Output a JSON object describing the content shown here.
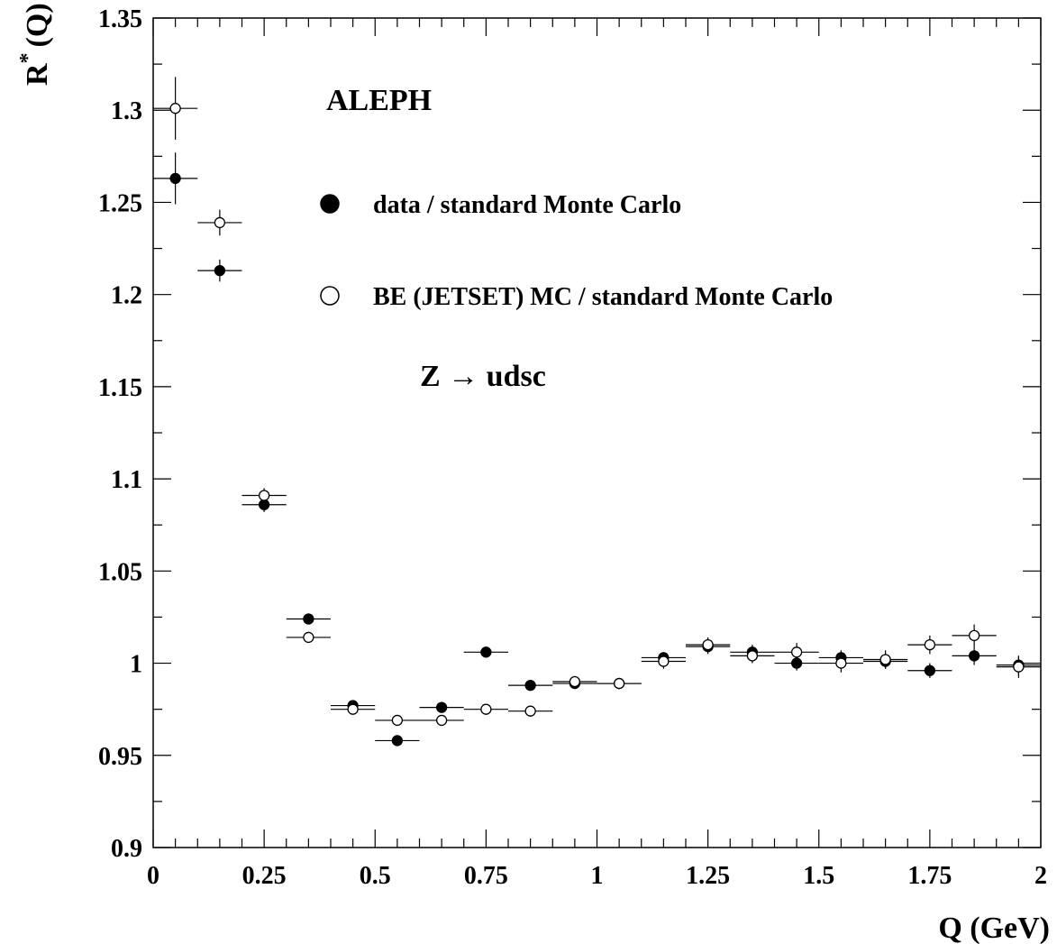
{
  "chart_data": {
    "type": "scatter",
    "title": "",
    "experiment_label": "ALEPH",
    "process_label": "Z → udsc",
    "xlabel": "Q (GeV)",
    "ylabel_main": "R",
    "ylabel_sup": "*",
    "ylabel_tail": "(Q)",
    "xlim": [
      0,
      2
    ],
    "ylim": [
      0.9,
      1.35
    ],
    "x_ticks": [
      {
        "value": 0,
        "label": "0"
      },
      {
        "value": 0.25,
        "label": "0.25"
      },
      {
        "value": 0.5,
        "label": "0.5"
      },
      {
        "value": 0.75,
        "label": "0.75"
      },
      {
        "value": 1,
        "label": "1"
      },
      {
        "value": 1.25,
        "label": "1.25"
      },
      {
        "value": 1.5,
        "label": "1.5"
      },
      {
        "value": 1.75,
        "label": "1.75"
      },
      {
        "value": 2,
        "label": "2"
      }
    ],
    "y_ticks": [
      {
        "value": 0.9,
        "label": "0.9"
      },
      {
        "value": 0.95,
        "label": "0.95"
      },
      {
        "value": 1,
        "label": "1"
      },
      {
        "value": 1.05,
        "label": "1.05"
      },
      {
        "value": 1.1,
        "label": "1.1"
      },
      {
        "value": 1.15,
        "label": "1.15"
      },
      {
        "value": 1.2,
        "label": "1.2"
      },
      {
        "value": 1.25,
        "label": "1.25"
      },
      {
        "value": 1.3,
        "label": "1.3"
      },
      {
        "value": 1.35,
        "label": "1.35"
      }
    ],
    "legend_placement": "top-center",
    "series": [
      {
        "name": "data / standard Monte Carlo",
        "marker": "filled-circle",
        "color": "#000000",
        "points": [
          {
            "x": 0.05,
            "y": 1.263,
            "xerr": 0.05,
            "yerr": 0.014
          },
          {
            "x": 0.15,
            "y": 1.213,
            "xerr": 0.05,
            "yerr": 0.006
          },
          {
            "x": 0.25,
            "y": 1.086,
            "xerr": 0.05,
            "yerr": 0.004
          },
          {
            "x": 0.35,
            "y": 1.024,
            "xerr": 0.05,
            "yerr": 0.003
          },
          {
            "x": 0.45,
            "y": 0.977,
            "xerr": 0.05,
            "yerr": 0.002
          },
          {
            "x": 0.55,
            "y": 0.958,
            "xerr": 0.05,
            "yerr": 0.002
          },
          {
            "x": 0.65,
            "y": 0.976,
            "xerr": 0.05,
            "yerr": 0.002
          },
          {
            "x": 0.75,
            "y": 1.006,
            "xerr": 0.05,
            "yerr": 0.002
          },
          {
            "x": 0.85,
            "y": 0.988,
            "xerr": 0.05,
            "yerr": 0.002
          },
          {
            "x": 0.95,
            "y": 0.989,
            "xerr": 0.05,
            "yerr": 0.003
          },
          {
            "x": 1.05,
            "y": 0.989,
            "xerr": 0.05,
            "yerr": 0.003
          },
          {
            "x": 1.15,
            "y": 1.003,
            "xerr": 0.05,
            "yerr": 0.003
          },
          {
            "x": 1.25,
            "y": 1.009,
            "xerr": 0.05,
            "yerr": 0.004
          },
          {
            "x": 1.35,
            "y": 1.006,
            "xerr": 0.05,
            "yerr": 0.004
          },
          {
            "x": 1.45,
            "y": 1.0,
            "xerr": 0.05,
            "yerr": 0.004
          },
          {
            "x": 1.55,
            "y": 1.003,
            "xerr": 0.05,
            "yerr": 0.004
          },
          {
            "x": 1.65,
            "y": 1.001,
            "xerr": 0.05,
            "yerr": 0.004
          },
          {
            "x": 1.75,
            "y": 0.996,
            "xerr": 0.05,
            "yerr": 0.004
          },
          {
            "x": 1.85,
            "y": 1.004,
            "xerr": 0.05,
            "yerr": 0.005
          },
          {
            "x": 1.95,
            "y": 0.999,
            "xerr": 0.05,
            "yerr": 0.005
          }
        ]
      },
      {
        "name": "BE (JETSET) MC / standard Monte Carlo",
        "marker": "open-circle",
        "color": "#000000",
        "points": [
          {
            "x": 0.05,
            "y": 1.301,
            "xerr": 0.05,
            "yerr": 0.017
          },
          {
            "x": 0.15,
            "y": 1.239,
            "xerr": 0.05,
            "yerr": 0.007
          },
          {
            "x": 0.25,
            "y": 1.091,
            "xerr": 0.05,
            "yerr": 0.004
          },
          {
            "x": 0.35,
            "y": 1.014,
            "xerr": 0.05,
            "yerr": 0.003
          },
          {
            "x": 0.45,
            "y": 0.975,
            "xerr": 0.05,
            "yerr": 0.002
          },
          {
            "x": 0.55,
            "y": 0.969,
            "xerr": 0.05,
            "yerr": 0.002
          },
          {
            "x": 0.65,
            "y": 0.969,
            "xerr": 0.05,
            "yerr": 0.002
          },
          {
            "x": 0.75,
            "y": 0.975,
            "xerr": 0.05,
            "yerr": 0.002
          },
          {
            "x": 0.85,
            "y": 0.974,
            "xerr": 0.05,
            "yerr": 0.003
          },
          {
            "x": 0.95,
            "y": 0.99,
            "xerr": 0.05,
            "yerr": 0.003
          },
          {
            "x": 1.05,
            "y": 0.989,
            "xerr": 0.05,
            "yerr": 0.003
          },
          {
            "x": 1.15,
            "y": 1.001,
            "xerr": 0.05,
            "yerr": 0.004
          },
          {
            "x": 1.25,
            "y": 1.01,
            "xerr": 0.05,
            "yerr": 0.004
          },
          {
            "x": 1.35,
            "y": 1.004,
            "xerr": 0.05,
            "yerr": 0.004
          },
          {
            "x": 1.45,
            "y": 1.006,
            "xerr": 0.05,
            "yerr": 0.005
          },
          {
            "x": 1.55,
            "y": 1.0,
            "xerr": 0.05,
            "yerr": 0.005
          },
          {
            "x": 1.65,
            "y": 1.002,
            "xerr": 0.05,
            "yerr": 0.005
          },
          {
            "x": 1.75,
            "y": 1.01,
            "xerr": 0.05,
            "yerr": 0.005
          },
          {
            "x": 1.85,
            "y": 1.015,
            "xerr": 0.05,
            "yerr": 0.006
          },
          {
            "x": 1.95,
            "y": 0.998,
            "xerr": 0.05,
            "yerr": 0.006
          }
        ]
      }
    ]
  }
}
